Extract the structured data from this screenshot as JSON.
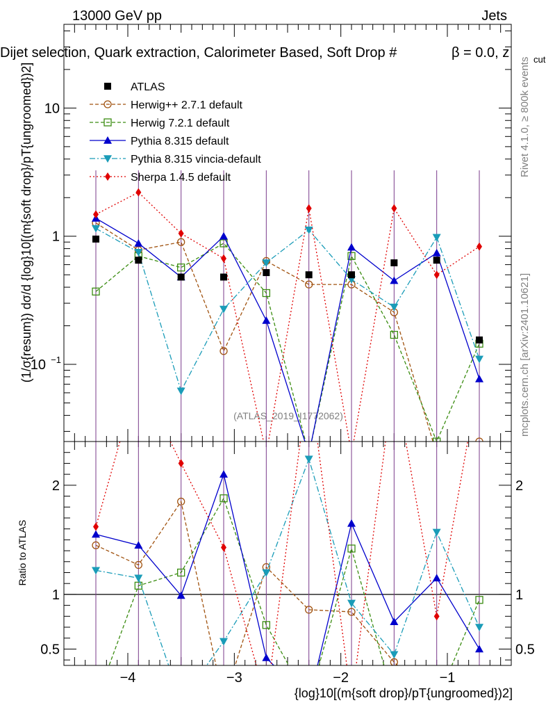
{
  "header": {
    "energy_label": "13000 GeV pp",
    "process_label": "Jets",
    "title_main": "Dijet selection, Quark extraction, Calorimeter Based, Soft Drop #",
    "title_beta": "β = 0.0, z",
    "title_sub": "cut"
  },
  "side_labels": {
    "rivet": "Rivet 4.1.0, ≥ 800k events",
    "mcplots": "mcplots.cern.ch [arXiv:2401.10621]"
  },
  "analysis_id": "(ATLAS_2019_I1772062)",
  "axes": {
    "main_ylabel": "(1/σ{resum}) dσ/d {log}10[(m{soft drop}/pT{ungroomed})2]",
    "ratio_ylabel": "Ratio to ATLAS",
    "xlabel": "{log}10[(m{soft drop}/pT{ungroomed})2]"
  },
  "colors": {
    "ATLAS": "#000000",
    "Herwig++ 2.7.1 default": "#a0520f",
    "Herwig 7.2.1 default": "#3a8c10",
    "Pythia 8.315 default": "#0000cc",
    "Pythia 8.315 vincia-default": "#1a9cb8",
    "Sherpa 1.4.5 default": "#e00000"
  },
  "chart_data": {
    "type": "line",
    "title": "Dijet selection, Quark extraction, Calorimeter Based, Soft Drop #β = 0.0, z_cut",
    "xlabel": "{log}10[(m{soft drop}/pT{ungroomed})2]",
    "ylabel": "(1/σ{resum}) dσ/d {log}10[(m{soft drop}/pT{ungroomed})2]",
    "xlim": [
      -4.6,
      -0.4
    ],
    "ylim": [
      0.025,
      45
    ],
    "yscale": "log",
    "ratio_ylim": [
      0.35,
      2.4
    ],
    "x_ticks": [
      -4,
      -3,
      -2,
      -1
    ],
    "x_tick_labels": [
      "−4",
      "−3",
      "−2",
      "−1"
    ],
    "y_ticks": [
      0.1,
      1,
      10
    ],
    "y_tick_labels": [
      "10−1",
      "1",
      "10"
    ],
    "ratio_ticks": [
      0.5,
      1,
      2
    ],
    "ratio_tick_labels": [
      "0.5",
      "1",
      "2"
    ],
    "x": [
      -4.3,
      -3.9,
      -3.5,
      -3.1,
      -2.7,
      -2.3,
      -1.9,
      -1.5,
      -1.1,
      -0.7
    ],
    "series": [
      {
        "name": "ATLAS",
        "values": [
          0.95,
          0.65,
          0.48,
          0.48,
          0.52,
          0.5,
          0.5,
          0.62,
          0.65,
          0.155
        ]
      },
      {
        "name": "Herwig++ 2.7.1 default",
        "values": [
          1.27,
          0.78,
          0.9,
          0.127,
          0.64,
          0.42,
          0.42,
          0.255,
          0.02,
          0.025
        ]
      },
      {
        "name": "Herwig 7.2.1 default",
        "values": [
          0.37,
          0.7,
          0.57,
          0.88,
          0.36,
          0.02,
          0.7,
          0.17,
          0.025,
          0.145
        ]
      },
      {
        "name": "Pythia 8.315 default",
        "values": [
          1.38,
          0.88,
          0.48,
          1.0,
          0.22,
          0.02,
          0.82,
          0.45,
          0.74,
          0.077
        ]
      },
      {
        "name": "Pythia 8.315 vincia-default",
        "values": [
          1.15,
          0.75,
          0.062,
          0.27,
          0.62,
          1.12,
          0.46,
          0.28,
          0.98,
          0.11
        ]
      },
      {
        "name": "Sherpa 1.4.5 default",
        "values": [
          1.48,
          2.2,
          1.05,
          0.67,
          0.02,
          1.65,
          0.02,
          1.65,
          0.5,
          0.83
        ]
      }
    ],
    "ratio_series": [
      {
        "name": "Herwig++ 2.7.1 default",
        "values": [
          1.45,
          1.27,
          1.85,
          0.02,
          1.25,
          0.86,
          0.84,
          0.38,
          0.02,
          0.02
        ]
      },
      {
        "name": "Herwig 7.2.1 default",
        "values": [
          0.02,
          1.08,
          1.2,
          1.88,
          0.72,
          0.02,
          1.42,
          0.02,
          0.02,
          0.95
        ]
      },
      {
        "name": "Pythia 8.315 default",
        "values": [
          1.55,
          1.45,
          0.99,
          2.1,
          0.42,
          0.02,
          1.65,
          0.75,
          1.15,
          0.5
        ]
      },
      {
        "name": "Pythia 8.315 vincia-default",
        "values": [
          1.22,
          1.15,
          0.02,
          0.57,
          1.2,
          2.24,
          0.92,
          0.45,
          1.57,
          0.7
        ]
      },
      {
        "name": "Sherpa 1.4.5 default",
        "values": [
          1.62,
          3.0,
          2.2,
          1.43,
          0.02,
          3.0,
          0.02,
          3.0,
          0.8,
          3.0
        ]
      }
    ],
    "legend": [
      "ATLAS",
      "Herwig++ 2.7.1 default",
      "Herwig 7.2.1 default",
      "Pythia 8.315 default",
      "Pythia 8.315 vincia-default",
      "Sherpa 1.4.5 default"
    ],
    "legend_position": "top-left"
  }
}
